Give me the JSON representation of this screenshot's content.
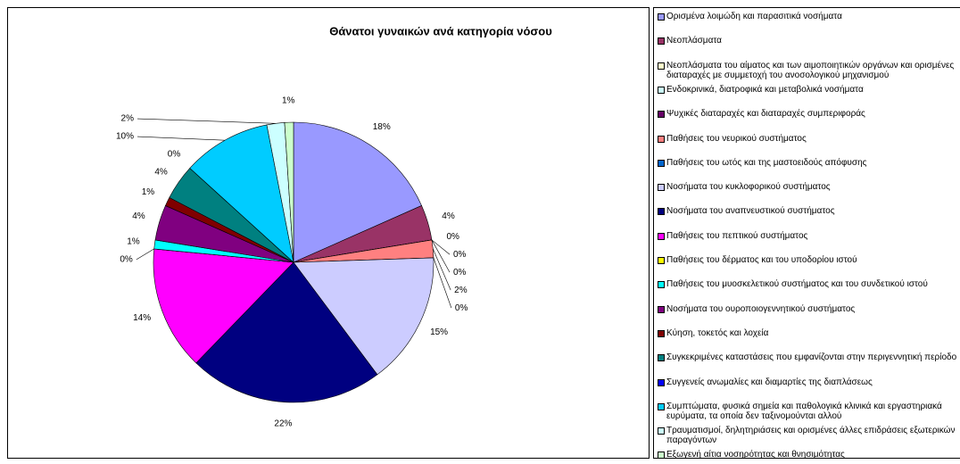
{
  "chart_data": {
    "type": "pie",
    "title": "Θάνατοι γυναικών ανά κατηγορία νόσου",
    "categories": [
      "Ορισμένα λοιμώδη και παρασιτικά νοσήματα",
      "Νεοπλάσματα",
      "Νεοπλάσματα του αίματος και των αιμοποιητικών οργάνων και ορισμένες διαταραχές με συμμετοχή του ανοσολογικού μηχανισμού",
      "Ενδοκρινικά, διατροφικά και μεταβολικά νοσήματα",
      "Ψυχικές διαταραχές και διαταραχές συμπεριφοράς",
      "Παθήσεις του νευρικού συστήματος",
      "Παθήσεις του ωτός και της μαστοειδούς απόφυσης",
      "Νοσήματα του κυκλοφορικού συστήματος",
      "Νοσήματα του αναπνευστικού συστήματος",
      "Παθήσεις του πεπτικού συστήματος",
      "Παθήσεις του δέρματος και του υποδορίου ιστού",
      "Παθήσεις του μυοσκελετικού συστήματος και του συνδετικού ιστού",
      "Νοσήματα του ουροποιογεννητικού συστήματος",
      "Κύηση, τοκετός και λοχεία",
      "Συγκεκριμένες καταστάσεις που εμφανίζονται στην περιγεννητική περίοδο",
      "Συγγενείς ανωμαλίες και διαμαρτίες της διαπλάσεως",
      "Συμπτώματα, φυσικά σημεία και παθολογικά κλινικά και εργαστηριακά ευρύματα, τα οποία δεν ταξινομούνται αλλού",
      "Τραυματισμοί, δηλητηριάσεις και ορισμένες άλλες επιδράσεις εξωτερικών παραγόντων",
      "Εξωγενή αίτια νοσηρότητας και θνησιμότητας"
    ],
    "values": [
      18,
      4,
      0,
      0,
      0,
      2,
      0,
      15,
      22,
      14,
      0,
      1,
      4,
      1,
      4,
      0,
      10,
      2,
      1
    ],
    "value_labels": [
      "18%",
      "4%",
      "0%",
      "0%",
      "0%",
      "2%",
      "0%",
      "15%",
      "22%",
      "14%",
      "0%",
      "1%",
      "4%",
      "1%",
      "4%",
      "0%",
      "10%",
      "2%",
      "1%"
    ],
    "colors": [
      "#9999ff",
      "#993366",
      "#ffffcc",
      "#ccffff",
      "#660066",
      "#ff8080",
      "#0066cc",
      "#ccccff",
      "#000080",
      "#ff00ff",
      "#ffff00",
      "#00ffff",
      "#800080",
      "#800000",
      "#008080",
      "#0000ff",
      "#00ccff",
      "#ccffff",
      "#ccffcc"
    ],
    "legend": "right"
  }
}
